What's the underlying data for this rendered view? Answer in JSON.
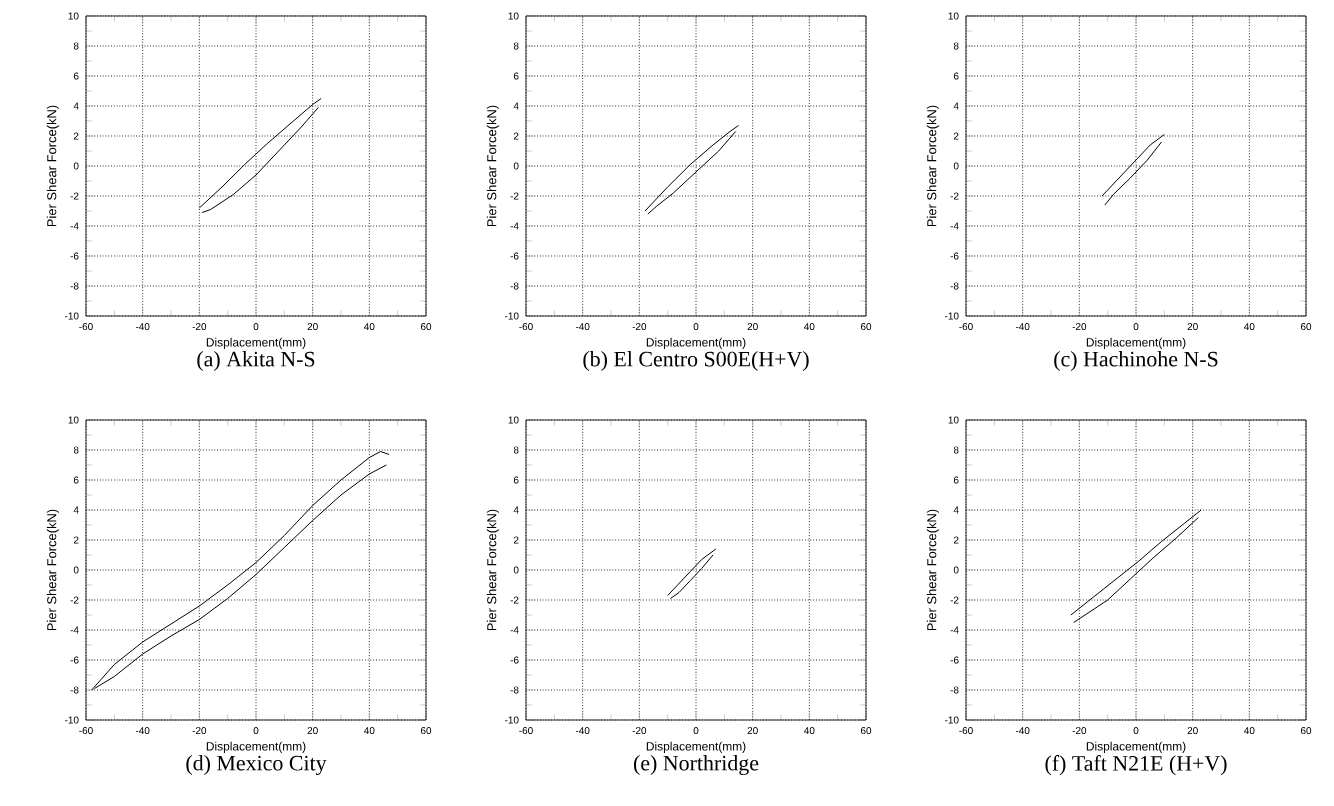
{
  "chart_data": [
    {
      "type": "line",
      "title": "(a) Akita N-S",
      "xlabel": "Displacement(mm)",
      "ylabel": "Pier Shear Force(kN)",
      "xlim": [
        -60,
        60
      ],
      "ylim": [
        -10,
        10
      ],
      "xticks": [
        -60,
        -40,
        -20,
        0,
        20,
        40,
        60
      ],
      "yticks": [
        -10,
        -8,
        -6,
        -4,
        -2,
        0,
        2,
        4,
        6,
        8,
        10
      ],
      "grid": true,
      "series": [
        {
          "color": "#000000",
          "x": [
            -20,
            -12,
            -4,
            4,
            12,
            20,
            23
          ],
          "values": [
            -2.8,
            -1.4,
            0.1,
            1.5,
            2.8,
            4.1,
            4.5
          ]
        },
        {
          "color": "#000000",
          "x": [
            22,
            16,
            8,
            0,
            -8,
            -16,
            -19
          ],
          "values": [
            3.9,
            2.6,
            1.0,
            -0.6,
            -1.9,
            -2.9,
            -3.1
          ]
        }
      ]
    },
    {
      "type": "line",
      "title": "(b) El Centro S00E(H+V)",
      "xlabel": "Displacement(mm)",
      "ylabel": "Pier Shear Force(kN)",
      "xlim": [
        -60,
        60
      ],
      "ylim": [
        -10,
        10
      ],
      "xticks": [
        -60,
        -40,
        -20,
        0,
        20,
        40,
        60
      ],
      "yticks": [
        -10,
        -8,
        -6,
        -4,
        -2,
        0,
        2,
        4,
        6,
        8,
        10
      ],
      "grid": true,
      "series": [
        {
          "color": "#000000",
          "x": [
            -18,
            -10,
            -2,
            6,
            12,
            15
          ],
          "values": [
            -3.0,
            -1.4,
            0.1,
            1.4,
            2.3,
            2.7
          ]
        },
        {
          "color": "#000000",
          "x": [
            14,
            8,
            0,
            -8,
            -14,
            -17
          ],
          "values": [
            2.3,
            1.0,
            -0.4,
            -1.8,
            -2.7,
            -3.2
          ]
        }
      ]
    },
    {
      "type": "line",
      "title": "(c) Hachinohe N-S",
      "xlabel": "Displacement(mm)",
      "ylabel": "Pier Shear Force(kN)",
      "xlim": [
        -60,
        60
      ],
      "ylim": [
        -10,
        10
      ],
      "xticks": [
        -60,
        -40,
        -20,
        0,
        20,
        40,
        60
      ],
      "yticks": [
        -10,
        -8,
        -6,
        -4,
        -2,
        0,
        2,
        4,
        6,
        8,
        10
      ],
      "grid": true,
      "series": [
        {
          "color": "#000000",
          "x": [
            -12,
            -6,
            0,
            5,
            10
          ],
          "values": [
            -2.0,
            -0.8,
            0.4,
            1.4,
            2.1
          ]
        },
        {
          "color": "#000000",
          "x": [
            9,
            4,
            -2,
            -8,
            -11
          ],
          "values": [
            1.6,
            0.4,
            -0.8,
            -1.9,
            -2.6
          ]
        }
      ]
    },
    {
      "type": "line",
      "title": "(d) Mexico City",
      "xlabel": "Displacement(mm)",
      "ylabel": "Pier Shear Force(kN)",
      "xlim": [
        -60,
        60
      ],
      "ylim": [
        -10,
        10
      ],
      "xticks": [
        -60,
        -40,
        -20,
        0,
        20,
        40,
        60
      ],
      "yticks": [
        -10,
        -8,
        -6,
        -4,
        -2,
        0,
        2,
        4,
        6,
        8,
        10
      ],
      "grid": true,
      "series": [
        {
          "color": "#000000",
          "x": [
            -58,
            -50,
            -40,
            -30,
            -20,
            -10,
            0,
            10,
            20,
            30,
            40,
            44,
            47
          ],
          "values": [
            -8.0,
            -6.3,
            -4.8,
            -3.6,
            -2.4,
            -1.0,
            0.5,
            2.3,
            4.3,
            6.0,
            7.5,
            7.9,
            7.7
          ]
        },
        {
          "color": "#000000",
          "x": [
            46,
            40,
            30,
            20,
            10,
            0,
            -10,
            -20,
            -30,
            -40,
            -50,
            -57
          ],
          "values": [
            7.0,
            6.4,
            5.0,
            3.3,
            1.5,
            -0.3,
            -1.9,
            -3.3,
            -4.4,
            -5.6,
            -7.1,
            -7.9
          ]
        }
      ]
    },
    {
      "type": "line",
      "title": "(e) Northridge",
      "xlabel": "Displacement(mm)",
      "ylabel": "Pier Shear Force(kN)",
      "xlim": [
        -60,
        60
      ],
      "ylim": [
        -10,
        10
      ],
      "xticks": [
        -60,
        -40,
        -20,
        0,
        20,
        40,
        60
      ],
      "yticks": [
        -10,
        -8,
        -6,
        -4,
        -2,
        0,
        2,
        4,
        6,
        8,
        10
      ],
      "grid": true,
      "series": [
        {
          "color": "#000000",
          "x": [
            -10,
            -6,
            -2,
            2,
            7
          ],
          "values": [
            -1.7,
            -0.9,
            -0.1,
            0.7,
            1.4
          ]
        },
        {
          "color": "#000000",
          "x": [
            6,
            2,
            -2,
            -6,
            -9
          ],
          "values": [
            1.0,
            0.1,
            -0.7,
            -1.5,
            -1.9
          ]
        }
      ]
    },
    {
      "type": "line",
      "title": "(f) Taft N21E (H+V)",
      "xlabel": "Displacement(mm)",
      "ylabel": "Pier Shear Force(kN)",
      "xlim": [
        -60,
        60
      ],
      "ylim": [
        -10,
        10
      ],
      "xticks": [
        -60,
        -40,
        -20,
        0,
        20,
        40,
        60
      ],
      "yticks": [
        -10,
        -8,
        -6,
        -4,
        -2,
        0,
        2,
        4,
        6,
        8,
        10
      ],
      "grid": true,
      "series": [
        {
          "color": "#000000",
          "x": [
            -23,
            -15,
            -7,
            1,
            9,
            17,
            23
          ],
          "values": [
            -3.0,
            -1.8,
            -0.6,
            0.6,
            1.9,
            3.1,
            4.0
          ]
        },
        {
          "color": "#000000",
          "x": [
            22,
            14,
            6,
            -2,
            -10,
            -18,
            -22
          ],
          "values": [
            3.5,
            2.1,
            0.8,
            -0.6,
            -2.0,
            -3.0,
            -3.5
          ]
        }
      ]
    }
  ]
}
